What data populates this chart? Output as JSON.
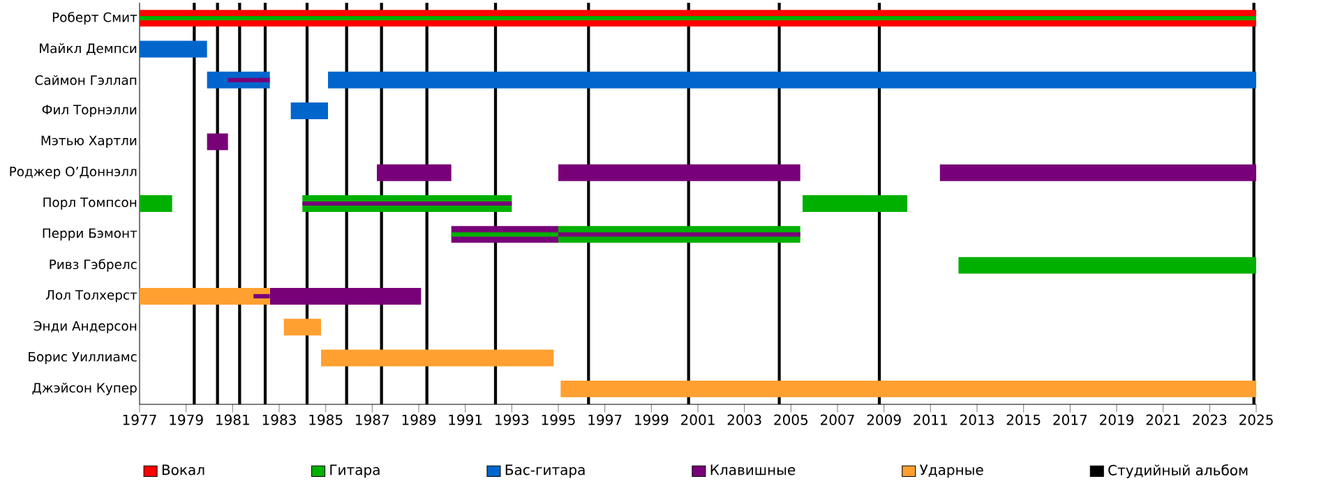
{
  "chart_data": {
    "type": "bar",
    "orientation": "horizontal",
    "legend": "bottom",
    "categories": [
      "Роберт Смит",
      "Майкл Демпси",
      "Саймон Гэллап",
      "Фил Торнэлли",
      "Мэтью Хартли",
      "Роджер О’Доннэлл",
      "Порл Томпсон",
      "Перри Бэмонт",
      "Ривз Гэбрелс",
      "Лол Толхерст",
      "Энди Андерсон",
      "Борис Уиллиамс",
      "Джэйсон Купер"
    ],
    "xlim": [
      1977,
      2025
    ],
    "xticks": [
      1977,
      1979,
      1981,
      1983,
      1985,
      1987,
      1989,
      1991,
      1993,
      1995,
      1997,
      1999,
      2001,
      2003,
      2005,
      2007,
      2009,
      2011,
      2013,
      2015,
      2017,
      2019,
      2021,
      2023,
      2025
    ],
    "series": [
      {
        "name": "Вокал",
        "color": "#ff0000",
        "base": [
          1977,
          null,
          null,
          null,
          null,
          null,
          null,
          null,
          null,
          null,
          null,
          null,
          null
        ],
        "values": [
          48,
          null,
          null,
          null,
          null,
          null,
          null,
          null,
          null,
          null,
          null,
          null,
          null
        ]
      },
      {
        "name": "Гитара",
        "color": "#00b000",
        "base": [
          null,
          null,
          null,
          null,
          null,
          null,
          1977,
          1995,
          2012.2,
          null,
          null,
          null,
          null
        ],
        "values": [
          null,
          null,
          null,
          null,
          null,
          null,
          1.4,
          10.4,
          12.8,
          null,
          null,
          null,
          null
        ]
      },
      {
        "name": "Бас-гитара",
        "color": "#0066cc",
        "base": [
          null,
          1977,
          1979.9,
          1983.5,
          null,
          null,
          null,
          null,
          null,
          null,
          null,
          null,
          null
        ],
        "values": [
          null,
          2.9,
          2.7,
          1.6,
          null,
          null,
          null,
          null,
          null,
          null,
          null,
          null,
          null
        ]
      },
      {
        "name": "Клавишные",
        "color": "#780078",
        "base": [
          null,
          null,
          null,
          null,
          1979.9,
          1987.2,
          null,
          1990.4,
          null,
          1982.6,
          null,
          null,
          null
        ],
        "values": [
          null,
          null,
          null,
          null,
          0.9,
          3.2,
          null,
          4.6,
          null,
          6.5,
          null,
          null,
          null
        ]
      },
      {
        "name": "Ударные",
        "color": "#ffa030",
        "base": [
          null,
          null,
          null,
          null,
          null,
          null,
          null,
          null,
          null,
          1977,
          1983.2,
          1984.8,
          1995.1
        ],
        "values": [
          null,
          null,
          null,
          null,
          null,
          null,
          null,
          null,
          null,
          5.6,
          1.6,
          10,
          29.9
        ]
      },
      {
        "color": "#00b000",
        "base": [
          null,
          null,
          null,
          null,
          null,
          null,
          1984,
          null,
          null,
          null,
          null,
          null,
          null
        ],
        "values": [
          null,
          null,
          null,
          null,
          null,
          null,
          9,
          null,
          null,
          null,
          null,
          null,
          null
        ]
      },
      {
        "color": "#00b000",
        "base": [
          null,
          null,
          null,
          null,
          null,
          null,
          2005.5,
          null,
          null,
          null,
          null,
          null,
          null
        ],
        "values": [
          null,
          null,
          null,
          null,
          null,
          null,
          4.5,
          null,
          null,
          null,
          null,
          null,
          null
        ]
      },
      {
        "color": "#0066cc",
        "base": [
          null,
          null,
          1985.1,
          null,
          null,
          null,
          null,
          null,
          null,
          null,
          null,
          null,
          null
        ],
        "values": [
          null,
          null,
          39.9,
          null,
          null,
          null,
          null,
          null,
          null,
          null,
          null,
          null,
          null
        ]
      },
      {
        "color": "#780078",
        "base": [
          null,
          null,
          null,
          null,
          null,
          1995,
          null,
          null,
          null,
          null,
          null,
          null,
          null
        ],
        "values": [
          null,
          null,
          null,
          null,
          null,
          10.4,
          null,
          null,
          null,
          null,
          null,
          null,
          null
        ]
      },
      {
        "color": "#780078",
        "base": [
          null,
          null,
          null,
          null,
          null,
          2011.4,
          null,
          null,
          null,
          null,
          null,
          null,
          null
        ],
        "values": [
          null,
          null,
          null,
          null,
          null,
          13.6,
          null,
          null,
          null,
          null,
          null,
          null,
          null
        ]
      },
      {
        "color": "#00b000",
        "base": [
          1977,
          null,
          null,
          null,
          null,
          null,
          null,
          1990.4,
          null,
          null,
          null,
          null,
          null
        ],
        "values": [
          48,
          null,
          null,
          null,
          null,
          null,
          null,
          4.6,
          null,
          null,
          null,
          null,
          null
        ]
      },
      {
        "color": "#780078",
        "base": [
          null,
          null,
          1980.8,
          null,
          null,
          null,
          1984,
          1995,
          null,
          1981.9,
          null,
          null,
          null
        ],
        "values": [
          null,
          null,
          1.8,
          null,
          null,
          null,
          9,
          10.4,
          null,
          0.7,
          null,
          null,
          null
        ]
      }
    ],
    "ref_lines": [
      {
        "axis": "x",
        "value": 1979.35,
        "color": "#000000",
        "label": "Студийный альбом"
      },
      {
        "axis": "x",
        "value": 1980.35,
        "color": "#000000"
      },
      {
        "axis": "x",
        "value": 1981.3,
        "color": "#000000"
      },
      {
        "axis": "x",
        "value": 1982.4,
        "color": "#000000"
      },
      {
        "axis": "x",
        "value": 1984.2,
        "color": "#000000"
      },
      {
        "axis": "x",
        "value": 1985.9,
        "color": "#000000"
      },
      {
        "axis": "x",
        "value": 1987.4,
        "color": "#000000"
      },
      {
        "axis": "x",
        "value": 1989.35,
        "color": "#000000"
      },
      {
        "axis": "x",
        "value": 1992.3,
        "color": "#000000"
      },
      {
        "axis": "x",
        "value": 1996.3,
        "color": "#000000"
      },
      {
        "axis": "x",
        "value": 2000.6,
        "color": "#000000"
      },
      {
        "axis": "x",
        "value": 2004.5,
        "color": "#000000"
      },
      {
        "axis": "x",
        "value": 2008.8,
        "color": "#000000"
      },
      {
        "axis": "x",
        "value": 2024.9,
        "color": "#000000"
      }
    ]
  }
}
